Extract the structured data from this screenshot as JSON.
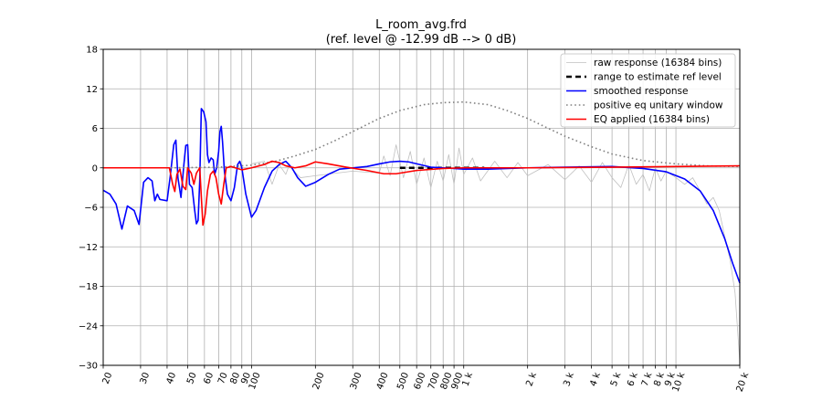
{
  "chart_data": {
    "type": "line",
    "title": "L_room_avg.frd",
    "subtitle": "(ref. level @ -12.99 dB --> 0 dB)",
    "xlabel": "",
    "ylabel": "",
    "x_scale": "log",
    "xlim": [
      20,
      20000
    ],
    "ylim": [
      -30,
      18
    ],
    "grid": true,
    "legend_position": "top-right",
    "y_ticks": [
      18,
      12,
      6,
      0,
      -6,
      -12,
      -18,
      -24,
      -30
    ],
    "y_tick_labels": [
      "18",
      "12",
      "6",
      "0",
      "−6",
      "−12",
      "−18",
      "−24",
      "−30"
    ],
    "x_ticks": [
      20,
      30,
      40,
      50,
      60,
      70,
      80,
      90,
      100,
      200,
      300,
      400,
      500,
      600,
      700,
      800,
      900,
      1000,
      2000,
      3000,
      4000,
      5000,
      6000,
      7000,
      8000,
      9000,
      10000,
      20000
    ],
    "x_tick_labels": [
      "20",
      "30",
      "40",
      "50",
      "60",
      "70",
      "80",
      "90",
      "100",
      "200",
      "300",
      "400",
      "500",
      "600",
      "700",
      "800",
      "900",
      "1 k",
      "2 k",
      "3 k",
      "4 k",
      "5 k",
      "6 k",
      "7 k",
      "8 k",
      "9 k",
      "10 k",
      "20 k"
    ],
    "series": [
      {
        "name": "raw response (16384 bins)",
        "color": "#c0c0c0",
        "style": "thin",
        "points": [
          [
            100,
            0.6
          ],
          [
            115,
            1.0
          ],
          [
            125,
            -2.5
          ],
          [
            135,
            0.5
          ],
          [
            145,
            -1.0
          ],
          [
            150,
            0.3
          ],
          [
            170,
            -1.5
          ],
          [
            200,
            -1.2
          ],
          [
            300,
            -0.5
          ],
          [
            400,
            -0.8
          ],
          [
            420,
            1.8
          ],
          [
            450,
            -1.2
          ],
          [
            480,
            3.5
          ],
          [
            520,
            -1.5
          ],
          [
            560,
            2.5
          ],
          [
            600,
            -2.5
          ],
          [
            650,
            1.5
          ],
          [
            700,
            -3.0
          ],
          [
            750,
            1.0
          ],
          [
            800,
            -2.0
          ],
          [
            850,
            2.0
          ],
          [
            900,
            -2.5
          ],
          [
            950,
            3.0
          ],
          [
            1000,
            -1.0
          ],
          [
            1100,
            1.5
          ],
          [
            1200,
            -2.0
          ],
          [
            1400,
            1.0
          ],
          [
            1600,
            -1.5
          ],
          [
            1800,
            0.8
          ],
          [
            2000,
            -1.2
          ],
          [
            2500,
            0.5
          ],
          [
            3000,
            -1.8
          ],
          [
            3500,
            0.3
          ],
          [
            4000,
            -2.2
          ],
          [
            4500,
            0.8
          ],
          [
            5000,
            -1.5
          ],
          [
            5500,
            -3.0
          ],
          [
            6000,
            0.5
          ],
          [
            6500,
            -2.5
          ],
          [
            7000,
            -1.0
          ],
          [
            7500,
            -3.5
          ],
          [
            8000,
            0.0
          ],
          [
            8500,
            -2.0
          ],
          [
            9000,
            -0.5
          ],
          [
            10000,
            -1.5
          ],
          [
            11000,
            -2.5
          ],
          [
            12000,
            -1.5
          ],
          [
            13000,
            -3.5
          ],
          [
            14000,
            -5.5
          ],
          [
            15000,
            -4.5
          ],
          [
            16000,
            -6.5
          ],
          [
            17000,
            -10.5
          ],
          [
            18000,
            -14.0
          ],
          [
            19000,
            -19.0
          ],
          [
            20000,
            -29.5
          ]
        ]
      },
      {
        "name": "range to estimate ref level",
        "color": "#000000",
        "style": "dashed",
        "points": [
          [
            500,
            0
          ],
          [
            1250,
            0
          ]
        ]
      },
      {
        "name": "smoothed response",
        "color": "#0000ff",
        "style": "solid",
        "points": [
          [
            20,
            -3.4
          ],
          [
            21.5,
            -4.0
          ],
          [
            23,
            -5.5
          ],
          [
            24.5,
            -9.3
          ],
          [
            26,
            -5.8
          ],
          [
            28,
            -6.5
          ],
          [
            29.5,
            -8.6
          ],
          [
            31,
            -2.2
          ],
          [
            32.5,
            -1.5
          ],
          [
            34,
            -2.0
          ],
          [
            35,
            -5.0
          ],
          [
            36,
            -4.0
          ],
          [
            37,
            -4.8
          ],
          [
            40,
            -5.0
          ],
          [
            41.5,
            -1.0
          ],
          [
            43,
            3.5
          ],
          [
            44,
            4.2
          ],
          [
            45,
            -1.5
          ],
          [
            46.5,
            -4.5
          ],
          [
            48,
            0.5
          ],
          [
            49,
            3.4
          ],
          [
            50,
            3.5
          ],
          [
            51,
            -2.5
          ],
          [
            52.5,
            -3.0
          ],
          [
            54,
            -6.5
          ],
          [
            55,
            -8.5
          ],
          [
            56,
            -8.0
          ],
          [
            57,
            -2.0
          ],
          [
            58,
            9.0
          ],
          [
            59.5,
            8.5
          ],
          [
            61,
            7.0
          ],
          [
            62,
            2.0
          ],
          [
            63,
            0.8
          ],
          [
            64.5,
            1.5
          ],
          [
            66,
            1.2
          ],
          [
            67,
            -1.0
          ],
          [
            68.5,
            0.0
          ],
          [
            70,
            2.5
          ],
          [
            71,
            5.5
          ],
          [
            72,
            6.3
          ],
          [
            73,
            4.0
          ],
          [
            74.5,
            -0.5
          ],
          [
            77,
            -4.0
          ],
          [
            80,
            -5.0
          ],
          [
            83,
            -3.0
          ],
          [
            86,
            0.5
          ],
          [
            88,
            1.0
          ],
          [
            90,
            0.0
          ],
          [
            94,
            -4.0
          ],
          [
            100,
            -7.5
          ],
          [
            105,
            -6.5
          ],
          [
            115,
            -3.0
          ],
          [
            125,
            -0.5
          ],
          [
            135,
            0.5
          ],
          [
            145,
            1.0
          ],
          [
            155,
            0.0
          ],
          [
            165,
            -1.5
          ],
          [
            180,
            -2.8
          ],
          [
            200,
            -2.2
          ],
          [
            230,
            -1.0
          ],
          [
            260,
            -0.2
          ],
          [
            300,
            0.0
          ],
          [
            350,
            0.2
          ],
          [
            400,
            0.6
          ],
          [
            450,
            0.9
          ],
          [
            500,
            1.0
          ],
          [
            550,
            0.9
          ],
          [
            620,
            0.5
          ],
          [
            700,
            0.1
          ],
          [
            800,
            0.0
          ],
          [
            900,
            -0.1
          ],
          [
            1000,
            -0.2
          ],
          [
            1300,
            -0.2
          ],
          [
            2000,
            0.0
          ],
          [
            3000,
            0.1
          ],
          [
            5000,
            0.2
          ],
          [
            7000,
            -0.1
          ],
          [
            9000,
            -0.6
          ],
          [
            11000,
            -1.7
          ],
          [
            13000,
            -3.5
          ],
          [
            15000,
            -6.5
          ],
          [
            17000,
            -10.8
          ],
          [
            18500,
            -14.5
          ],
          [
            20000,
            -17.5
          ]
        ]
      },
      {
        "name": "positive eq unitary window",
        "color": "#808080",
        "style": "dotted",
        "points": [
          [
            20,
            0
          ],
          [
            40,
            0
          ],
          [
            70,
            0.1
          ],
          [
            100,
            0.4
          ],
          [
            130,
            1.0
          ],
          [
            160,
            1.8
          ],
          [
            200,
            2.8
          ],
          [
            250,
            4.2
          ],
          [
            300,
            5.5
          ],
          [
            400,
            7.5
          ],
          [
            500,
            8.7
          ],
          [
            650,
            9.6
          ],
          [
            800,
            9.9
          ],
          [
            1000,
            10.0
          ],
          [
            1300,
            9.6
          ],
          [
            1600,
            8.7
          ],
          [
            2000,
            7.5
          ],
          [
            2500,
            6.0
          ],
          [
            3000,
            4.8
          ],
          [
            4000,
            3.2
          ],
          [
            5000,
            2.1
          ],
          [
            7000,
            1.1
          ],
          [
            10000,
            0.6
          ],
          [
            14000,
            0.3
          ],
          [
            20000,
            0.2
          ]
        ]
      },
      {
        "name": "EQ applied (16384 bins)",
        "color": "#ff0000",
        "style": "solid",
        "points": [
          [
            20,
            0
          ],
          [
            41,
            0
          ],
          [
            42.5,
            -2.5
          ],
          [
            43.5,
            -3.6
          ],
          [
            44.5,
            -1.0
          ],
          [
            46,
            -0.2
          ],
          [
            47.5,
            -2.8
          ],
          [
            49,
            -3.3
          ],
          [
            50,
            0
          ],
          [
            52,
            -0.8
          ],
          [
            53.5,
            -2.5
          ],
          [
            55,
            -0.8
          ],
          [
            57,
            0
          ],
          [
            59,
            -8.7
          ],
          [
            60.5,
            -7.0
          ],
          [
            62,
            -3.5
          ],
          [
            64,
            -1.0
          ],
          [
            66,
            -0.5
          ],
          [
            68,
            -1.5
          ],
          [
            70,
            -4.0
          ],
          [
            72,
            -5.5
          ],
          [
            74,
            -2.5
          ],
          [
            76,
            0
          ],
          [
            80,
            0.2
          ],
          [
            90,
            -0.3
          ],
          [
            100,
            0
          ],
          [
            115,
            0.5
          ],
          [
            125,
            1.0
          ],
          [
            135,
            0.8
          ],
          [
            145,
            0.3
          ],
          [
            160,
            0
          ],
          [
            180,
            0.3
          ],
          [
            200,
            0.9
          ],
          [
            230,
            0.6
          ],
          [
            280,
            0.1
          ],
          [
            350,
            -0.4
          ],
          [
            420,
            -0.9
          ],
          [
            480,
            -0.9
          ],
          [
            600,
            -0.4
          ],
          [
            800,
            -0.1
          ],
          [
            1000,
            0
          ],
          [
            2000,
            0
          ],
          [
            5000,
            0.1
          ],
          [
            10000,
            0.2
          ],
          [
            20000,
            0.3
          ]
        ]
      }
    ]
  }
}
